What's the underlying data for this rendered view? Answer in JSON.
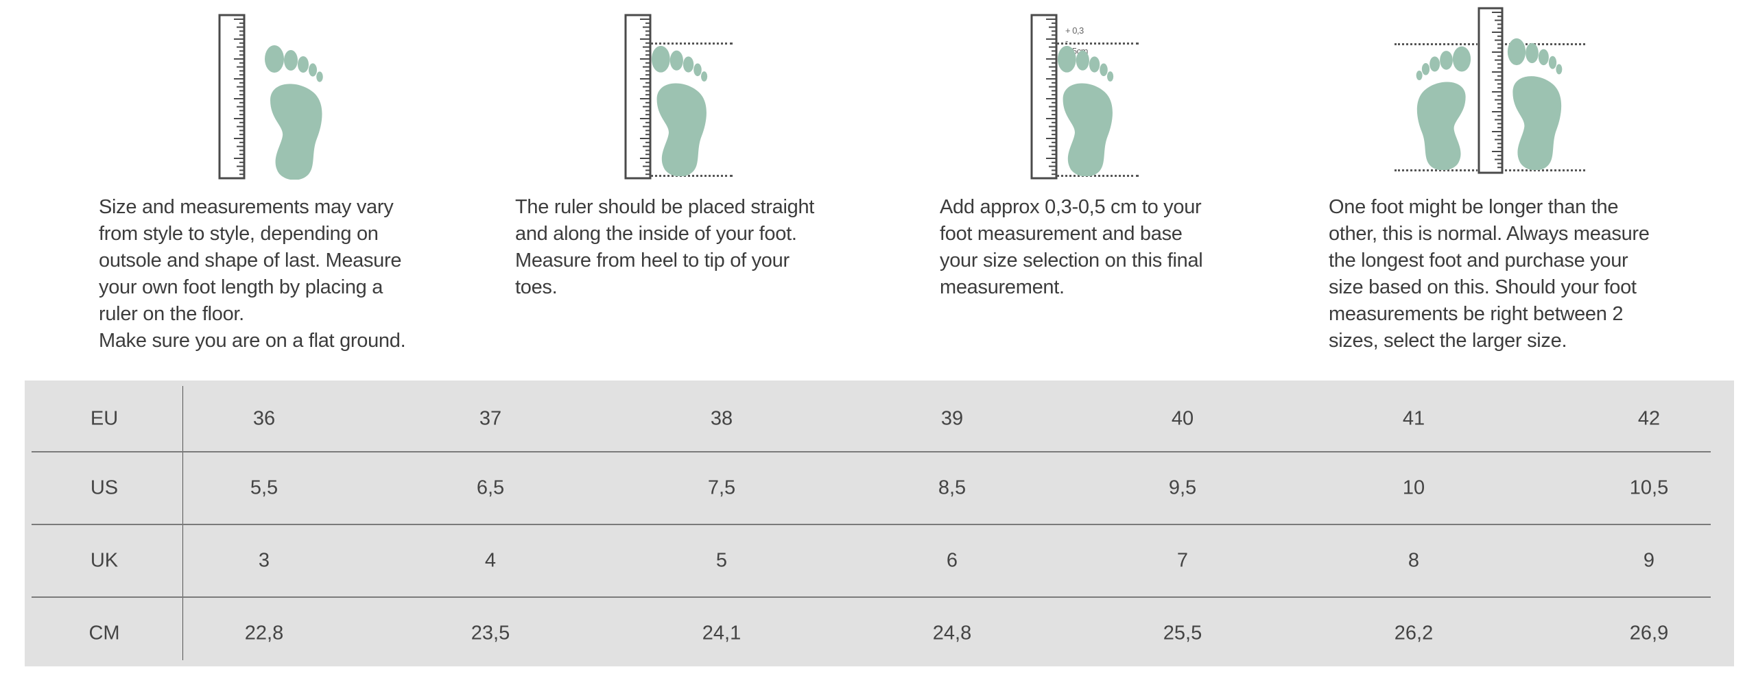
{
  "colors": {
    "foot": "#9cc2b1",
    "ruler": "#4a4a4a",
    "table_bg": "#e1e1e1"
  },
  "illustrations": [
    {
      "icon": "foot-beside-ruler-icon"
    },
    {
      "icon": "foot-on-ruler-icon"
    },
    {
      "icon": "foot-on-ruler-plus-margin-icon",
      "note": "+ 0,3 - 0,5cm"
    },
    {
      "icon": "two-feet-ruler-icon"
    }
  ],
  "instructions": [
    {
      "lines": [
        "Size and measurements may vary",
        "from style to style, depending on",
        "outsole and shape of last. Measure",
        "your own foot length by placing a",
        "ruler on the floor.",
        "Make sure you are on a flat ground."
      ]
    },
    {
      "lines": [
        "The ruler should be placed straight",
        "and along the inside of your foot.",
        "Measure from heel to tip of your",
        "toes."
      ]
    },
    {
      "lines": [
        "Add approx 0,3-0,5 cm to your",
        "foot measurement and base",
        "your size selection on this final",
        "measurement."
      ]
    },
    {
      "lines": [
        "One foot might be longer than the",
        "other, this is normal. Always measure",
        "the longest foot and purchase your",
        "size based on this. Should your foot",
        "measurements be right between 2",
        "sizes, select the larger size."
      ]
    }
  ],
  "size_table": {
    "rows": [
      {
        "label": "EU",
        "values": [
          "36",
          "37",
          "38",
          "39",
          "40",
          "41",
          "42"
        ]
      },
      {
        "label": "US",
        "values": [
          "5,5",
          "6,5",
          "7,5",
          "8,5",
          "9,5",
          "10",
          "10,5"
        ]
      },
      {
        "label": "UK",
        "values": [
          "3",
          "4",
          "5",
          "6",
          "7",
          "8",
          "9"
        ]
      },
      {
        "label": "CM",
        "values": [
          "22,8",
          "23,5",
          "24,1",
          "24,8",
          "25,5",
          "26,2",
          "26,9"
        ]
      }
    ]
  }
}
